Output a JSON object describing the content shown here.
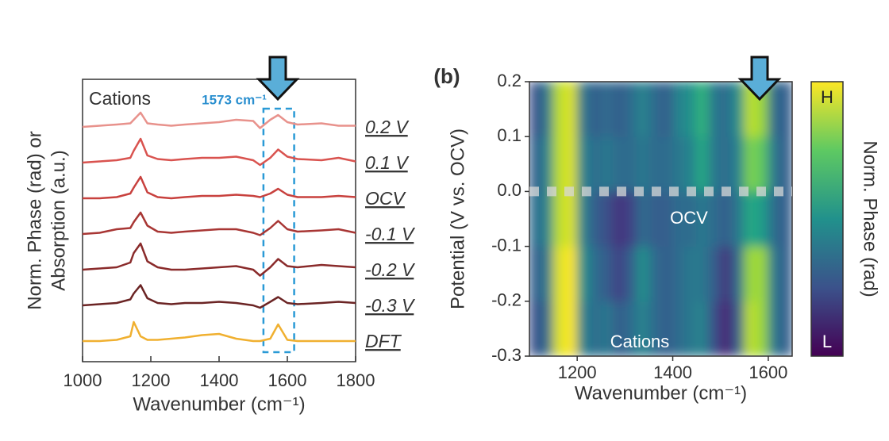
{
  "chart_data": [
    {
      "type": "line",
      "annotations": [
        "Cations",
        "1573 cm⁻¹"
      ],
      "xlabel": "Wavenumber (cm⁻¹)",
      "ylabel": [
        "Norm. Phase (rad) or",
        "Absorption (a.u.)"
      ],
      "x": [
        1000,
        1050,
        1100,
        1140,
        1150,
        1170,
        1190,
        1220,
        1260,
        1300,
        1350,
        1400,
        1450,
        1500,
        1520,
        1550,
        1573,
        1600,
        1630,
        1700,
        1750,
        1800
      ],
      "xlim": [
        1000,
        1800
      ],
      "xticks": [
        1000,
        1200,
        1400,
        1600,
        1800
      ],
      "highlight": [
        1530,
        1620
      ],
      "series": [
        {
          "name": "0.2 V",
          "color": "#e8928c",
          "values": [
            0,
            0.05,
            0.1,
            0.15,
            0.3,
            0.6,
            0.15,
            0.1,
            0.05,
            0.1,
            0.15,
            0.2,
            0.3,
            0.25,
            -0.05,
            0.3,
            0.5,
            0.2,
            0.1,
            0.15,
            0.05,
            0.05
          ]
        },
        {
          "name": "0.1 V",
          "color": "#d9534f",
          "values": [
            0,
            0.05,
            0.1,
            0.2,
            0.5,
            1.0,
            0.3,
            0.15,
            0.1,
            0.15,
            0.2,
            0.2,
            0.25,
            0.1,
            -0.1,
            0.2,
            0.55,
            0.25,
            0.15,
            0.1,
            0.2,
            0.05
          ]
        },
        {
          "name": "OCV",
          "color": "#c8413e",
          "values": [
            0,
            0,
            0.05,
            0.2,
            0.45,
            0.9,
            0.25,
            0.05,
            0,
            0.05,
            0.1,
            0.1,
            0.15,
            0.1,
            0.05,
            0.2,
            0.4,
            0.15,
            0.05,
            0.05,
            0.1,
            0.05
          ]
        },
        {
          "name": "-0.1 V",
          "color": "#a83634",
          "values": [
            0,
            0.05,
            0.2,
            0.25,
            0.5,
            0.9,
            0.35,
            0.1,
            0.05,
            0.1,
            0.15,
            0.2,
            0.2,
            0.05,
            -0.05,
            0.25,
            0.55,
            0.2,
            0.1,
            0.15,
            0.2,
            0.05
          ]
        },
        {
          "name": "-0.2 V",
          "color": "#8a2b2b",
          "values": [
            0,
            0.05,
            0.1,
            0.3,
            0.7,
            1.1,
            0.35,
            0.1,
            0,
            0,
            0.05,
            0.1,
            0.15,
            0,
            -0.25,
            0.1,
            0.45,
            0.15,
            0.1,
            0.2,
            0.15,
            0.1
          ]
        },
        {
          "name": "-0.3 V",
          "color": "#6b2424",
          "values": [
            0,
            0.05,
            0.1,
            0.25,
            0.5,
            0.85,
            0.3,
            0.1,
            0.05,
            0.1,
            0.1,
            0.15,
            0.1,
            0,
            -0.1,
            0.15,
            0.35,
            0.1,
            0.05,
            0.1,
            0.15,
            0.1
          ]
        },
        {
          "name": "DFT",
          "color": "#f0b030",
          "values": [
            0,
            0,
            0.05,
            0.2,
            0.8,
            0.2,
            0.05,
            0.05,
            0.1,
            0.15,
            0.25,
            0.3,
            0.1,
            0,
            0,
            0.1,
            0.7,
            0.05,
            0,
            0,
            0,
            0
          ]
        }
      ]
    },
    {
      "type": "heatmap",
      "label": "(b)",
      "annotations": [
        "OCV",
        "Cations"
      ],
      "xlabel": "Wavenumber (cm⁻¹)",
      "ylabel": "Potential (V vs. OCV)",
      "colorbar_label": "Norm. Phase (rad)",
      "colorbar_high": "H",
      "colorbar_low": "L",
      "clim": [
        0,
        1
      ],
      "xlim": [
        1100,
        1650
      ],
      "ylim": [
        -0.3,
        0.2
      ],
      "xticks": [
        1200,
        1400,
        1600
      ],
      "yticks": [
        0.2,
        0.1,
        {
          "value": 0,
          "label": "0.0"
        },
        -0.1,
        -0.2,
        -0.3
      ],
      "hline": 0,
      "xbins": [
        1100,
        1125,
        1150,
        1175,
        1200,
        1225,
        1250,
        1275,
        1300,
        1325,
        1350,
        1375,
        1400,
        1425,
        1450,
        1475,
        1500,
        1525,
        1550,
        1575,
        1600,
        1625,
        1650
      ],
      "ybins": [
        -0.3,
        -0.2,
        -0.1,
        0,
        0.1,
        0.2
      ],
      "values": [
        [
          0.25,
          0.35,
          0.95,
          1.0,
          0.45,
          0.35,
          0.4,
          0.3,
          0.35,
          0.45,
          0.35,
          0.3,
          0.35,
          0.4,
          0.45,
          0.25,
          0.1,
          0.3,
          0.9,
          0.85,
          0.4,
          0.3
        ],
        [
          0.3,
          0.4,
          0.95,
          1.0,
          0.5,
          0.35,
          0.3,
          0.2,
          0.3,
          0.5,
          0.35,
          0.3,
          0.35,
          0.4,
          0.4,
          0.3,
          0.15,
          0.35,
          0.85,
          0.85,
          0.4,
          0.3
        ],
        [
          0.35,
          0.45,
          0.9,
          0.95,
          0.45,
          0.3,
          0.25,
          0.15,
          0.2,
          0.35,
          0.3,
          0.3,
          0.35,
          0.35,
          0.4,
          0.35,
          0.3,
          0.4,
          0.6,
          0.55,
          0.35,
          0.3
        ],
        [
          0.3,
          0.45,
          0.9,
          0.95,
          0.45,
          0.35,
          0.4,
          0.35,
          0.35,
          0.4,
          0.35,
          0.35,
          0.4,
          0.45,
          0.6,
          0.4,
          0.35,
          0.45,
          0.8,
          0.75,
          0.4,
          0.3
        ],
        [
          0.25,
          0.4,
          0.9,
          0.95,
          0.4,
          0.3,
          0.35,
          0.3,
          0.35,
          0.45,
          0.35,
          0.3,
          0.45,
          0.5,
          0.65,
          0.4,
          0.35,
          0.5,
          0.9,
          0.85,
          0.35,
          0.3
        ]
      ]
    }
  ]
}
